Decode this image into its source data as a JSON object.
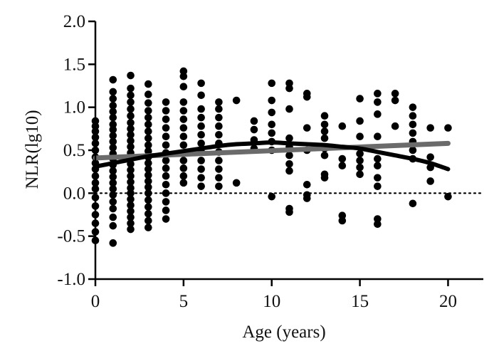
{
  "chart_data": {
    "type": "scatter",
    "title": "",
    "xlabel": "Age (years)",
    "ylabel": "NLR(lg10)",
    "xlim": [
      0,
      22
    ],
    "ylim": [
      -1.0,
      2.0
    ],
    "x_ticks": [
      0,
      5,
      10,
      15,
      20
    ],
    "x_tick_labels": [
      "0",
      "5",
      "10",
      "15",
      "20"
    ],
    "y_ticks": [
      -1.0,
      -0.5,
      0.0,
      0.5,
      1.0,
      1.5,
      2.0
    ],
    "y_tick_labels": [
      "-1.0",
      "-0.5",
      "0.0",
      "0.5",
      "1.0",
      "1.5",
      "2.0"
    ],
    "grid": false,
    "legend": "none",
    "reference_line": {
      "y": 0.0,
      "style": "dotted"
    },
    "colors": {
      "points": "#000000",
      "linear_fit": "#6b6b6b",
      "curve_fit": "#000000",
      "axis": "#000000"
    },
    "points_by_age": [
      {
        "x": 0,
        "y": [
          0.84,
          0.78,
          0.72,
          0.65,
          0.58,
          0.5,
          0.42,
          0.35,
          0.28,
          0.2,
          0.12,
          0.05,
          -0.05,
          -0.15,
          -0.25,
          -0.35,
          -0.45,
          -0.55
        ]
      },
      {
        "x": 1,
        "y": [
          1.32,
          1.18,
          1.1,
          1.02,
          0.95,
          0.88,
          0.8,
          0.74,
          0.67,
          0.6,
          0.53,
          0.46,
          0.4,
          0.33,
          0.26,
          0.19,
          0.12,
          0.05,
          -0.02,
          -0.1,
          -0.18,
          -0.28,
          -0.38,
          -0.58
        ]
      },
      {
        "x": 2,
        "y": [
          1.37,
          1.22,
          1.14,
          1.06,
          0.98,
          0.9,
          0.82,
          0.75,
          0.68,
          0.61,
          0.54,
          0.47,
          0.41,
          0.34,
          0.27,
          0.2,
          0.13,
          0.06,
          0.0,
          -0.07,
          -0.14,
          -0.21,
          -0.28,
          -0.35,
          -0.42
        ]
      },
      {
        "x": 3,
        "y": [
          1.27,
          1.15,
          1.05,
          0.96,
          0.88,
          0.8,
          0.72,
          0.64,
          0.56,
          0.49,
          0.42,
          0.35,
          0.28,
          0.21,
          0.14,
          0.07,
          0.0,
          -0.08,
          -0.16,
          -0.24,
          -0.32,
          -0.4
        ]
      },
      {
        "x": 4,
        "y": [
          1.06,
          0.96,
          0.86,
          0.76,
          0.66,
          0.56,
          0.47,
          0.38,
          0.29,
          0.2,
          0.1,
          0.0,
          -0.1,
          -0.2,
          -0.3
        ]
      },
      {
        "x": 5,
        "y": [
          1.42,
          1.36,
          1.24,
          1.06,
          0.96,
          0.86,
          0.76,
          0.66,
          0.56,
          0.47,
          0.38,
          0.29,
          0.2,
          0.12
        ]
      },
      {
        "x": 6,
        "y": [
          1.28,
          1.14,
          0.98,
          0.88,
          0.78,
          0.68,
          0.58,
          0.48,
          0.38,
          0.28,
          0.18,
          0.08
        ]
      },
      {
        "x": 7,
        "y": [
          1.06,
          0.98,
          0.88,
          0.78,
          0.68,
          0.58,
          0.48,
          0.38,
          0.28,
          0.18,
          0.08
        ]
      },
      {
        "x": 8,
        "y": [
          1.08,
          0.12
        ]
      },
      {
        "x": 9,
        "y": [
          0.84,
          0.74,
          0.62,
          0.52
        ]
      },
      {
        "x": 10,
        "y": [
          1.28,
          1.08,
          0.94,
          0.8,
          0.7,
          0.6,
          0.5,
          -0.04
        ]
      },
      {
        "x": 11,
        "y": [
          1.28,
          1.22,
          0.98,
          0.64,
          0.54,
          0.44,
          0.34,
          0.26,
          -0.18,
          -0.22
        ]
      },
      {
        "x": 12,
        "y": [
          1.16,
          1.12,
          0.76,
          0.5,
          0.1,
          -0.02,
          -0.06
        ]
      },
      {
        "x": 13,
        "y": [
          0.9,
          0.8,
          0.72,
          0.64,
          0.52,
          0.44,
          0.22,
          0.18
        ]
      },
      {
        "x": 14,
        "y": [
          0.78,
          0.4,
          0.32,
          -0.26,
          -0.32
        ]
      },
      {
        "x": 15,
        "y": [
          1.1,
          0.84,
          0.66,
          0.46,
          0.38,
          0.3,
          0.22
        ]
      },
      {
        "x": 16,
        "y": [
          1.16,
          1.06,
          0.92,
          0.66,
          0.4,
          0.32,
          0.18,
          0.08,
          -0.3,
          -0.36
        ]
      },
      {
        "x": 17,
        "y": [
          1.16,
          1.08,
          0.78
        ]
      },
      {
        "x": 18,
        "y": [
          1.0,
          0.9,
          0.8,
          0.7,
          0.6,
          0.5,
          0.4,
          -0.12
        ]
      },
      {
        "x": 19,
        "y": [
          0.76,
          0.42,
          0.3,
          0.14
        ]
      },
      {
        "x": 20,
        "y": [
          0.76,
          -0.04
        ]
      }
    ],
    "linear_fit": {
      "x": [
        0,
        20
      ],
      "y": [
        0.41,
        0.58
      ]
    },
    "curve_fit": {
      "x": [
        0,
        1,
        2,
        3,
        4,
        5,
        6,
        7,
        8,
        9,
        10,
        11,
        12,
        13,
        14,
        15,
        16,
        17,
        18,
        19,
        20
      ],
      "y": [
        0.31,
        0.35,
        0.39,
        0.43,
        0.46,
        0.49,
        0.52,
        0.55,
        0.57,
        0.58,
        0.59,
        0.58,
        0.57,
        0.56,
        0.54,
        0.52,
        0.48,
        0.44,
        0.4,
        0.35,
        0.28
      ]
    }
  }
}
